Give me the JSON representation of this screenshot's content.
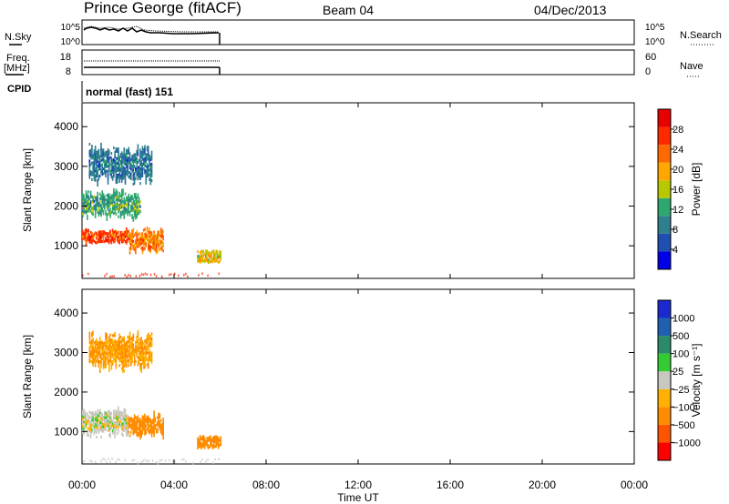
{
  "header": {
    "station": "Prince George (fitACF)",
    "beam": "Beam 04",
    "date": "04/Dec/2013"
  },
  "noise_panel": {
    "left_label": "N.Sky",
    "left_ticks": [
      "10^5",
      "10^0"
    ],
    "right_ticks": [
      "10^5",
      "10^0"
    ],
    "right_label": "N.Search"
  },
  "freq_panel": {
    "left_label_1": "Freq.",
    "left_label_2": "[MHz]",
    "left_ticks": [
      "18",
      "8"
    ],
    "right_ticks": [
      "60",
      "0"
    ],
    "right_label": "Nave"
  },
  "cpid": {
    "label": "CPID",
    "mode_text": "normal (fast) 151"
  },
  "colors": {
    "power_scale": [
      "#0000e6",
      "#1f4fb0",
      "#2f7f8f",
      "#2fa86f",
      "#b8c800",
      "#ffa600",
      "#ff6a00",
      "#ff2a00",
      "#e60000"
    ],
    "velocity_scale": [
      "#ff0000",
      "#ff5500",
      "#ff8c00",
      "#ffb000",
      "#c8c8c0",
      "#33cc33",
      "#2a8a6a",
      "#2060b0",
      "#1a2ad0"
    ]
  },
  "chart_data": [
    {
      "type": "heatmap",
      "title": "",
      "xlabel": "Time UT",
      "ylabel": "Slant Range [km]",
      "xlim": [
        "00:00",
        "24:00"
      ],
      "ylim": [
        180,
        4600
      ],
      "x_ticks": [
        "00:00",
        "04:00",
        "08:00",
        "12:00",
        "16:00",
        "20:00",
        "00:00"
      ],
      "y_ticks": [
        "4000",
        "3000",
        "2000",
        "1000"
      ],
      "colorbar_label": "Power [dB]",
      "colorbar_ticks": [
        "28",
        "24",
        "20",
        "16",
        "12",
        "8",
        "4"
      ],
      "colorbar_range": [
        0,
        32
      ],
      "data_extent_hours": [
        0,
        6
      ],
      "echo_regions": [
        {
          "t_start": 0.0,
          "t_end": 2.0,
          "range_center": 1200,
          "range_halfwidth": 150,
          "value": 26
        },
        {
          "t_start": 2.0,
          "t_end": 3.5,
          "range_center": 1100,
          "range_halfwidth": 250,
          "value": 22
        },
        {
          "t_start": 0.0,
          "t_end": 2.5,
          "range_center": 2000,
          "range_halfwidth": 300,
          "value": 12
        },
        {
          "t_start": 0.3,
          "t_end": 3.0,
          "range_center": 3000,
          "range_halfwidth": 400,
          "value": 8
        },
        {
          "t_start": 5.0,
          "t_end": 6.0,
          "range_center": 700,
          "range_halfwidth": 100,
          "value": 18
        }
      ]
    },
    {
      "type": "heatmap",
      "title": "",
      "xlabel": "Time UT",
      "ylabel": "Slant Range [km]",
      "xlim": [
        "00:00",
        "24:00"
      ],
      "ylim": [
        180,
        4600
      ],
      "x_ticks": [
        "00:00",
        "04:00",
        "08:00",
        "12:00",
        "16:00",
        "20:00",
        "00:00"
      ],
      "y_ticks": [
        "4000",
        "3000",
        "2000",
        "1000"
      ],
      "colorbar_label": "Velocity [m s⁻¹]",
      "colorbar_ticks": [
        "1000",
        "500",
        "100",
        "25",
        "−25",
        "−100",
        "−500",
        "−1000"
      ],
      "data_extent_hours": [
        0,
        6
      ],
      "echo_regions": [
        {
          "t_start": 0.0,
          "t_end": 2.0,
          "range_center": 1200,
          "range_halfwidth": 300,
          "value": 0
        },
        {
          "t_start": 2.0,
          "t_end": 3.5,
          "range_center": 1100,
          "range_halfwidth": 250,
          "value": -300
        },
        {
          "t_start": 0.3,
          "t_end": 3.0,
          "range_center": 3000,
          "range_halfwidth": 400,
          "value": -100
        },
        {
          "t_start": 5.0,
          "t_end": 6.0,
          "range_center": 700,
          "range_halfwidth": 100,
          "value": -200
        }
      ]
    }
  ]
}
